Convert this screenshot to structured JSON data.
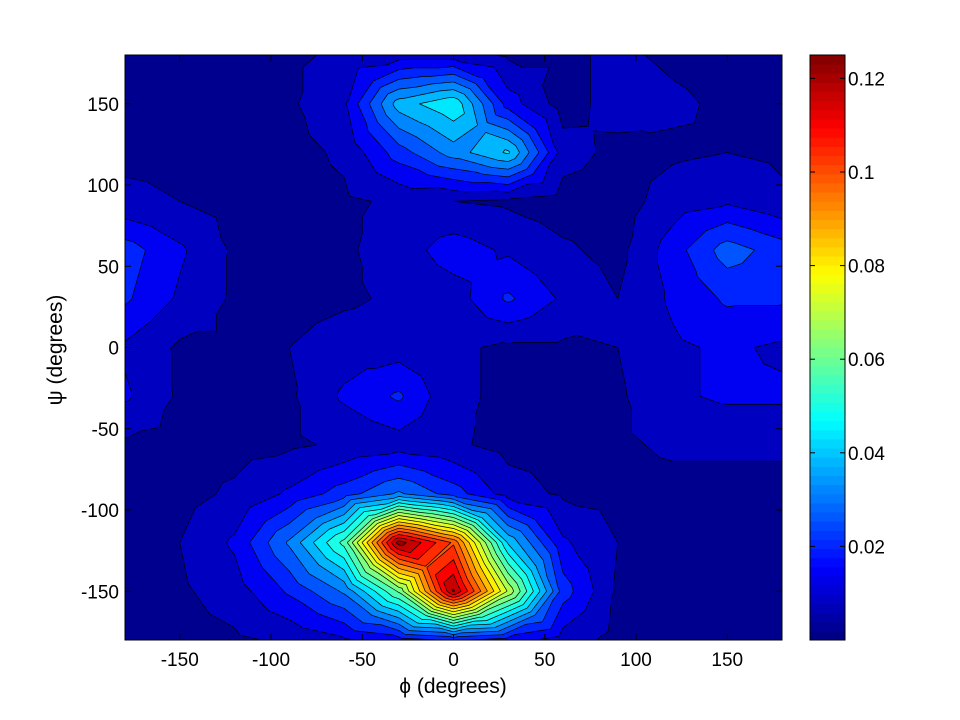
{
  "chart_data": {
    "type": "heatmap",
    "style": "filled-contour",
    "colormap": "jet",
    "xlabel": "ϕ (degrees)",
    "ylabel": "ψ (degrees)",
    "xlim": [
      -180,
      180
    ],
    "ylim": [
      -180,
      180
    ],
    "xticks": [
      -150,
      -100,
      -50,
      0,
      50,
      100,
      150
    ],
    "yticks": [
      -150,
      -100,
      -50,
      0,
      50,
      100,
      150
    ],
    "grid": false,
    "colorbar": {
      "position": "right",
      "range": [
        0,
        0.125
      ],
      "ticks": [
        0.02,
        0.04,
        0.06,
        0.08,
        0.1,
        0.12
      ],
      "tick_labels": [
        "0.02",
        "0.04",
        "0.06",
        "0.08",
        "0.1",
        "0.12"
      ]
    },
    "grid_phi": [
      -180,
      -150,
      -120,
      -90,
      -60,
      -30,
      0,
      30,
      60,
      90,
      120,
      150,
      180
    ],
    "grid_psi": [
      -180,
      -150,
      -120,
      -90,
      -60,
      -30,
      0,
      30,
      60,
      90,
      120,
      150,
      180
    ],
    "z": [
      [
        0.003,
        0.003,
        0.004,
        0.006,
        0.01,
        0.014,
        0.018,
        0.014,
        0.008,
        0.003,
        0.003,
        0.003,
        0.003
      ],
      [
        0.003,
        0.004,
        0.008,
        0.018,
        0.03,
        0.06,
        0.12,
        0.07,
        0.02,
        0.004,
        0.003,
        0.003,
        0.003
      ],
      [
        0.003,
        0.005,
        0.012,
        0.03,
        0.055,
        0.122,
        0.1,
        0.04,
        0.012,
        0.005,
        0.003,
        0.003,
        0.003
      ],
      [
        0.003,
        0.003,
        0.006,
        0.012,
        0.02,
        0.03,
        0.02,
        0.008,
        0.004,
        0.003,
        0.003,
        0.003,
        0.003
      ],
      [
        0.004,
        0.003,
        0.003,
        0.004,
        0.006,
        0.008,
        0.006,
        0.003,
        0.003,
        0.004,
        0.006,
        0.006,
        0.006
      ],
      [
        0.012,
        0.004,
        0.003,
        0.004,
        0.012,
        0.018,
        0.006,
        0.004,
        0.003,
        0.004,
        0.01,
        0.012,
        0.012
      ],
      [
        0.01,
        0.004,
        0.004,
        0.005,
        0.008,
        0.008,
        0.006,
        0.004,
        0.004,
        0.005,
        0.01,
        0.012,
        0.01
      ],
      [
        0.018,
        0.01,
        0.004,
        0.003,
        0.004,
        0.006,
        0.008,
        0.018,
        0.01,
        0.005,
        0.012,
        0.018,
        0.018
      ],
      [
        0.02,
        0.012,
        0.004,
        0.003,
        0.004,
        0.008,
        0.014,
        0.01,
        0.006,
        0.003,
        0.014,
        0.026,
        0.02
      ],
      [
        0.006,
        0.005,
        0.003,
        0.003,
        0.004,
        0.006,
        0.005,
        0.004,
        0.002,
        0.002,
        0.008,
        0.01,
        0.006
      ],
      [
        0.004,
        0.004,
        0.003,
        0.003,
        0.006,
        0.02,
        0.032,
        0.042,
        0.008,
        0.003,
        0.004,
        0.005,
        0.004
      ],
      [
        0.003,
        0.003,
        0.003,
        0.004,
        0.01,
        0.038,
        0.046,
        0.014,
        0.002,
        0.008,
        0.006,
        0.004,
        0.003
      ],
      [
        0.003,
        0.003,
        0.003,
        0.004,
        0.006,
        0.008,
        0.008,
        0.004,
        0.004,
        0.006,
        0.004,
        0.003,
        0.003
      ]
    ]
  }
}
